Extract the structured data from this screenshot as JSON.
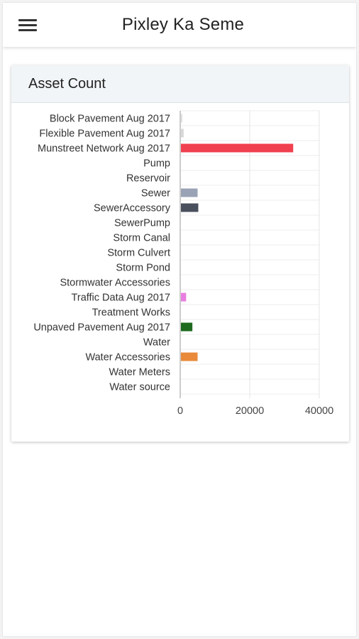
{
  "appbar": {
    "title": "Pixley Ka Seme",
    "menu_icon": "hamburger-menu-icon"
  },
  "card": {
    "title": "Asset Count"
  },
  "chart_data": {
    "type": "bar",
    "orientation": "horizontal",
    "title": "",
    "xlabel": "",
    "ylabel": "",
    "xlim": [
      0,
      40000
    ],
    "x_ticks": [
      "0",
      "20000",
      "40000"
    ],
    "grid": true,
    "categories": [
      "Block Pavement Aug 2017",
      "Flexible Pavement Aug 2017",
      "Munstreet Network Aug 2017",
      "Pump",
      "Reservoir",
      "Sewer",
      "SewerAccessory",
      "SewerPump",
      "Storm Canal",
      "Storm Culvert",
      "Storm Pond",
      "Stormwater Accessories",
      "Traffic Data Aug 2017",
      "Treatment Works",
      "Unpaved Pavement Aug 2017",
      "Water",
      "Water Accessories",
      "Water Meters",
      "Water source"
    ],
    "values": [
      200,
      1000,
      32500,
      0,
      0,
      5000,
      5200,
      0,
      0,
      0,
      0,
      0,
      1700,
      0,
      3500,
      0,
      5000,
      0,
      0
    ],
    "colors": [
      "#e0e0e0",
      "#d8d8d8",
      "#f0404f",
      "#cccccc",
      "#cccccc",
      "#9aa3b5",
      "#4a4f5e",
      "#cccccc",
      "#cccccc",
      "#cccccc",
      "#cccccc",
      "#cccccc",
      "#e87ee0",
      "#cccccc",
      "#1e6a1e",
      "#cccccc",
      "#e88a3a",
      "#cccccc",
      "#cccccc"
    ]
  }
}
